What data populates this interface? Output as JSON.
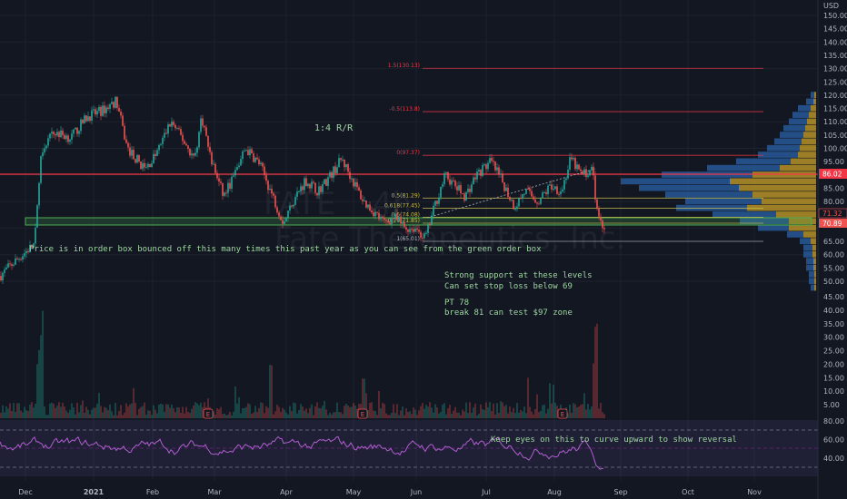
{
  "header": {
    "currency": "USD"
  },
  "watermark": "Fate Therapeutics, Inc.",
  "watermark_ticker": "FATE",
  "watermark_timeframe": "4h",
  "annotations": {
    "rr": "1:4 R/R",
    "order_box": "Price is in order box bounced off this many times this past year as you can see from the green order box",
    "support_1": "Strong support at these levels",
    "support_2": "Can set stop loss below 69",
    "pt": "PT 78",
    "break": "break 81 can test $97 zone",
    "rsi_note": "Keep eyes on this to curve upward to show reversal"
  },
  "price_tags": {
    "red_line": "86.02",
    "last_high": "71.32",
    "last_close": "70.89"
  },
  "earnings_marker": "E",
  "colors": {
    "background": "#131722",
    "up": "#26a69a",
    "down": "#ef5350",
    "red_line": "#f23645",
    "order_box": "#4caf50",
    "rsi": "#b05fd0",
    "fib": "#c8bd4a",
    "vp_up": "#2962a8",
    "vp_down": "#c9a227",
    "annotation": "#9fd6a2"
  },
  "chart_data": {
    "type": "line",
    "title": "",
    "x_ticks": [
      "Dec",
      "2021",
      "Feb",
      "Mar",
      "Apr",
      "May",
      "Jun",
      "Jul",
      "Aug",
      "Sep",
      "Oct",
      "Nov"
    ],
    "price_axis": {
      "ylim": [
        45,
        150
      ],
      "ticks": [
        "150.00",
        "145.00",
        "140.00",
        "135.00",
        "130.00",
        "125.00",
        "120.00",
        "115.00",
        "110.00",
        "105.00",
        "100.00",
        "95.00",
        "90.00",
        "85.00",
        "80.00",
        "75.00",
        "65.00",
        "60.00",
        "55.00",
        "50.00"
      ]
    },
    "volume_axis": {
      "ticks": [
        "45.00",
        "40.00",
        "35.00",
        "30.00",
        "25.00",
        "20.00",
        "15.00",
        "10.00",
        "5.00"
      ]
    },
    "rsi_axis": {
      "ylim": [
        20,
        80
      ],
      "ticks": [
        "80.00",
        "60.00",
        "40.00"
      ],
      "bands": [
        30,
        50,
        70
      ]
    },
    "price_series": {
      "name": "",
      "x": [
        "Dec",
        "2021",
        "Feb",
        "Mar",
        "Apr",
        "May",
        "Jun",
        "Jul",
        "Aug"
      ],
      "values": [
        52,
        112,
        108,
        104,
        85,
        89,
        70,
        91,
        73
      ]
    },
    "horizontal_levels": {
      "red_line": 86.02,
      "order_box": [
        69.5,
        71.5
      ]
    },
    "fib_levels": [
      {
        "label": "1.5(130.13)",
        "price": 130.13
      },
      {
        "label": "-0.5(113.8)",
        "price": 113.8
      },
      {
        "label": "0(97.37)",
        "price": 97.37
      },
      {
        "label": "0.5(81.29)",
        "price": 81.29
      },
      {
        "label": "0.618(77.45)",
        "price": 77.45
      },
      {
        "label": "0.5(74.08)",
        "price": 74.08
      },
      {
        "label": "0.79(71.85)",
        "price": 71.85
      },
      {
        "label": "1(65.01)",
        "price": 65.01
      }
    ]
  }
}
